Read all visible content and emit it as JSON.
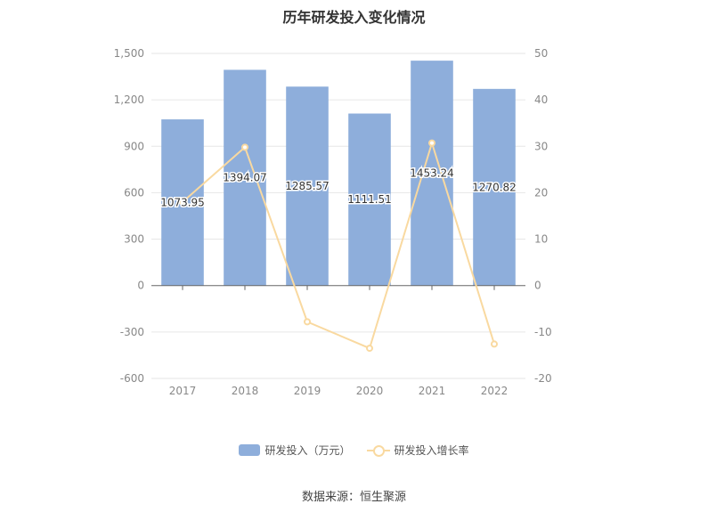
{
  "chart_data": {
    "type": "bar",
    "title": "历年研发投入变化情况",
    "categories": [
      "2017",
      "2018",
      "2019",
      "2020",
      "2021",
      "2022"
    ],
    "series": [
      {
        "name": "研发投入（万元）",
        "type": "bar",
        "axis": "left",
        "color": "#8eaedb",
        "values": [
          1073.95,
          1394.07,
          1285.57,
          1111.51,
          1453.24,
          1270.82
        ],
        "labels": [
          "1073.95",
          "1394.07",
          "1285.57",
          "1111.51",
          "1453.24",
          "1270.82"
        ]
      },
      {
        "name": "研发投入增长率",
        "type": "line",
        "axis": "right",
        "color": "#f9d9a0",
        "values": [
          18,
          29.8,
          -7.8,
          -13.5,
          30.7,
          -12.6
        ]
      }
    ],
    "y_left": {
      "min": -600,
      "max": 1500,
      "ticks": [
        -600,
        -300,
        0,
        300,
        600,
        900,
        1200,
        1500
      ],
      "tick_labels": [
        "-600",
        "-300",
        "0",
        "300",
        "600",
        "900",
        "1,200",
        "1,500"
      ]
    },
    "y_right": {
      "min": -20,
      "max": 50,
      "ticks": [
        -20,
        -10,
        0,
        10,
        20,
        30,
        40,
        50
      ],
      "tick_labels": [
        "-20",
        "-10",
        "0",
        "10",
        "20",
        "30",
        "40",
        "50"
      ]
    },
    "grid": true,
    "legend_position": "bottom"
  },
  "footer": {
    "source": "数据来源：恒生聚源"
  }
}
